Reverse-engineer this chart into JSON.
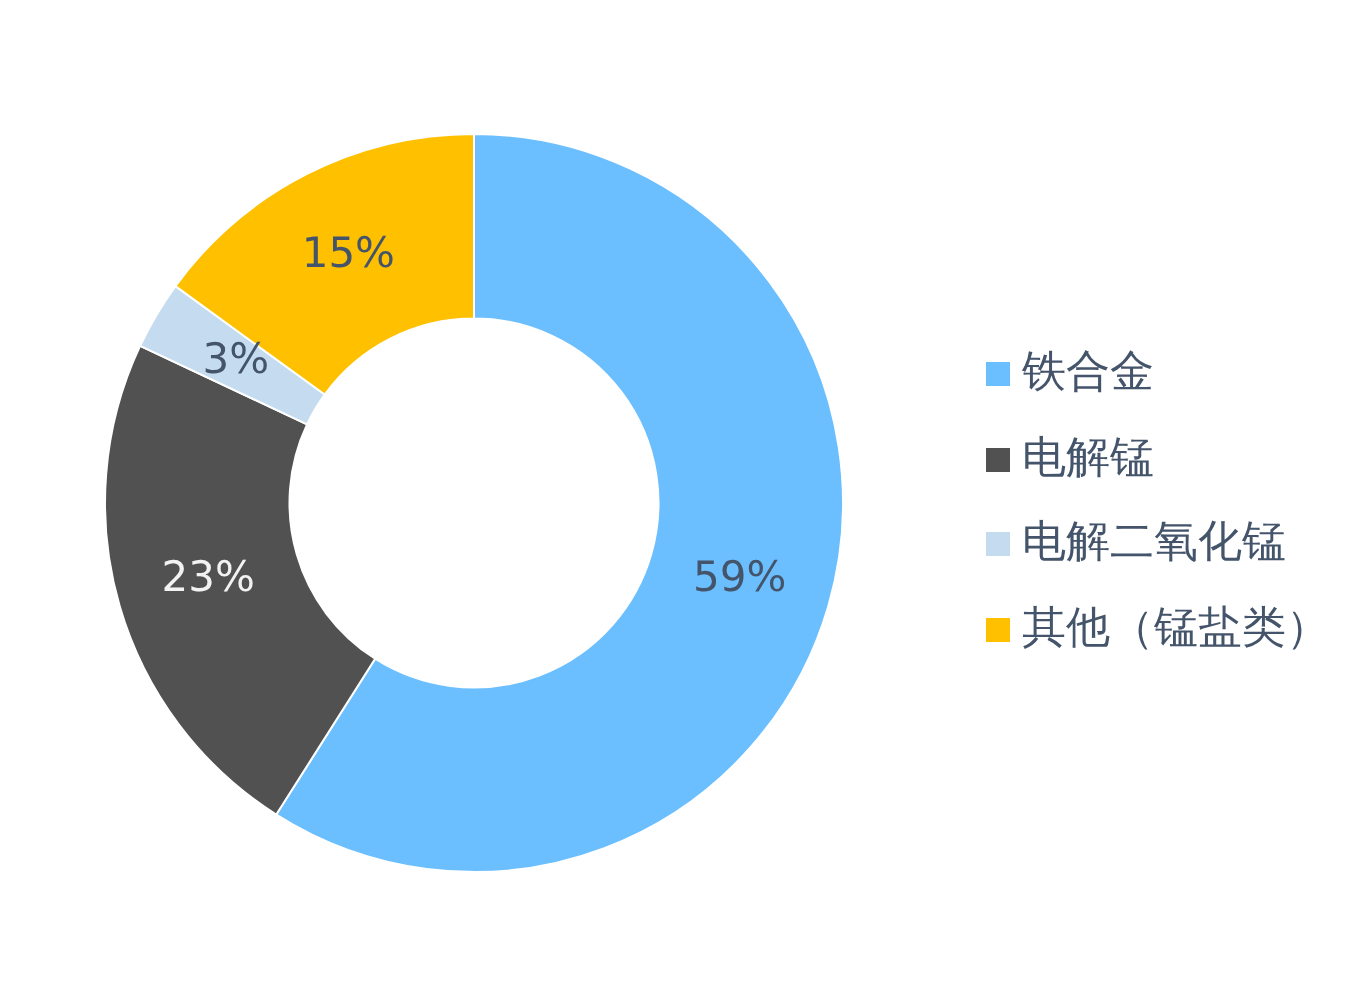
{
  "chart_data": {
    "type": "donut",
    "categories": [
      "铁合金",
      "电解锰",
      "电解二氧化锰",
      "其他（锰盐类）"
    ],
    "values": [
      59,
      23,
      3,
      15
    ],
    "colors": [
      "#6cbfff",
      "#515151",
      "#c5dcf0",
      "#ffc000"
    ],
    "value_labels": [
      "59%",
      "23%",
      "3%",
      "15%"
    ],
    "legend": "right"
  }
}
